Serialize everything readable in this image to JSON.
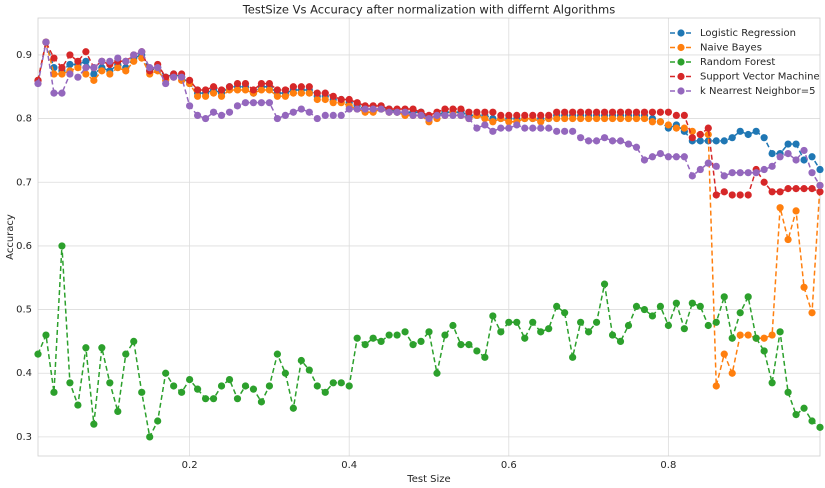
{
  "chart_data": {
    "type": "line",
    "title": "TestSize Vs Accuracy after normalization with differnt Algorithms",
    "x_label": "Test Size",
    "y_label": "Accuracy",
    "x": [
      0.01,
      0.02,
      0.03,
      0.04,
      0.05,
      0.06,
      0.07,
      0.08,
      0.09,
      0.1,
      0.11,
      0.12,
      0.13,
      0.14,
      0.15,
      0.16,
      0.17,
      0.18,
      0.19,
      0.2,
      0.21,
      0.22,
      0.23,
      0.24,
      0.25,
      0.26,
      0.27,
      0.28,
      0.29,
      0.3,
      0.31,
      0.32,
      0.33,
      0.34,
      0.35,
      0.36,
      0.37,
      0.38,
      0.39,
      0.4,
      0.41,
      0.42,
      0.43,
      0.44,
      0.45,
      0.46,
      0.47,
      0.48,
      0.49,
      0.5,
      0.51,
      0.52,
      0.53,
      0.54,
      0.55,
      0.56,
      0.57,
      0.58,
      0.59,
      0.6,
      0.61,
      0.62,
      0.63,
      0.64,
      0.65,
      0.66,
      0.67,
      0.68,
      0.69,
      0.7,
      0.71,
      0.72,
      0.73,
      0.74,
      0.75,
      0.76,
      0.77,
      0.78,
      0.79,
      0.8,
      0.81,
      0.82,
      0.83,
      0.84,
      0.85,
      0.86,
      0.87,
      0.88,
      0.89,
      0.9,
      0.91,
      0.92,
      0.93,
      0.94,
      0.95,
      0.96,
      0.97,
      0.98,
      0.99
    ],
    "series": [
      {
        "name": "Logistic Regression",
        "color": "#1f77b4",
        "values": [
          0.86,
          0.92,
          0.88,
          0.875,
          0.885,
          0.885,
          0.89,
          0.87,
          0.88,
          0.875,
          0.885,
          0.88,
          0.895,
          0.9,
          0.875,
          0.88,
          0.865,
          0.87,
          0.865,
          0.855,
          0.84,
          0.84,
          0.845,
          0.84,
          0.85,
          0.85,
          0.85,
          0.84,
          0.85,
          0.85,
          0.84,
          0.84,
          0.845,
          0.845,
          0.845,
          0.835,
          0.835,
          0.83,
          0.83,
          0.825,
          0.82,
          0.815,
          0.815,
          0.815,
          0.815,
          0.81,
          0.81,
          0.81,
          0.81,
          0.8,
          0.805,
          0.81,
          0.81,
          0.81,
          0.805,
          0.805,
          0.805,
          0.8,
          0.8,
          0.8,
          0.8,
          0.8,
          0.8,
          0.8,
          0.8,
          0.805,
          0.805,
          0.805,
          0.805,
          0.805,
          0.805,
          0.805,
          0.805,
          0.805,
          0.805,
          0.805,
          0.805,
          0.8,
          0.795,
          0.785,
          0.79,
          0.78,
          0.765,
          0.765,
          0.765,
          0.765,
          0.765,
          0.77,
          0.78,
          0.775,
          0.78,
          0.77,
          0.745,
          0.745,
          0.76,
          0.76,
          0.735,
          0.74,
          0.72
        ]
      },
      {
        "name": "Naive Bayes",
        "color": "#ff7f0e",
        "values": [
          0.86,
          0.92,
          0.87,
          0.87,
          0.875,
          0.88,
          0.87,
          0.86,
          0.875,
          0.87,
          0.88,
          0.875,
          0.89,
          0.895,
          0.87,
          0.875,
          0.86,
          0.865,
          0.86,
          0.855,
          0.835,
          0.835,
          0.84,
          0.835,
          0.845,
          0.845,
          0.845,
          0.84,
          0.845,
          0.845,
          0.835,
          0.835,
          0.84,
          0.84,
          0.84,
          0.83,
          0.83,
          0.825,
          0.825,
          0.82,
          0.815,
          0.81,
          0.81,
          0.815,
          0.81,
          0.81,
          0.805,
          0.805,
          0.805,
          0.795,
          0.8,
          0.805,
          0.81,
          0.805,
          0.8,
          0.805,
          0.8,
          0.795,
          0.8,
          0.795,
          0.795,
          0.8,
          0.8,
          0.795,
          0.8,
          0.8,
          0.8,
          0.8,
          0.8,
          0.8,
          0.8,
          0.8,
          0.8,
          0.8,
          0.8,
          0.8,
          0.8,
          0.795,
          0.795,
          0.79,
          0.785,
          0.785,
          0.78,
          0.775,
          0.775,
          0.38,
          0.43,
          0.4,
          0.46,
          0.46,
          0.455,
          0.455,
          0.46,
          0.66,
          0.61,
          0.655,
          0.535,
          0.495,
          0.695
        ]
      },
      {
        "name": "Random Forest",
        "color": "#2ca02c",
        "values": [
          0.43,
          0.46,
          0.37,
          0.6,
          0.385,
          0.35,
          0.44,
          0.32,
          0.44,
          0.385,
          0.34,
          0.43,
          0.45,
          0.37,
          0.3,
          0.325,
          0.4,
          0.38,
          0.37,
          0.39,
          0.375,
          0.36,
          0.36,
          0.38,
          0.39,
          0.36,
          0.38,
          0.375,
          0.355,
          0.38,
          0.43,
          0.4,
          0.345,
          0.42,
          0.405,
          0.38,
          0.37,
          0.385,
          0.385,
          0.38,
          0.455,
          0.445,
          0.455,
          0.45,
          0.46,
          0.46,
          0.465,
          0.445,
          0.45,
          0.465,
          0.4,
          0.46,
          0.475,
          0.445,
          0.445,
          0.435,
          0.425,
          0.49,
          0.465,
          0.48,
          0.48,
          0.455,
          0.48,
          0.465,
          0.47,
          0.505,
          0.495,
          0.425,
          0.48,
          0.465,
          0.48,
          0.54,
          0.46,
          0.45,
          0.475,
          0.505,
          0.5,
          0.49,
          0.505,
          0.475,
          0.51,
          0.47,
          0.51,
          0.505,
          0.475,
          0.48,
          0.52,
          0.455,
          0.495,
          0.52,
          0.455,
          0.435,
          0.385,
          0.465,
          0.37,
          0.335,
          0.345,
          0.325,
          0.315
        ]
      },
      {
        "name": "Support Vector Machine",
        "color": "#d62728",
        "values": [
          0.86,
          0.92,
          0.895,
          0.88,
          0.9,
          0.89,
          0.905,
          0.88,
          0.89,
          0.885,
          0.89,
          0.89,
          0.9,
          0.905,
          0.875,
          0.885,
          0.865,
          0.87,
          0.87,
          0.86,
          0.845,
          0.845,
          0.85,
          0.845,
          0.85,
          0.855,
          0.855,
          0.845,
          0.855,
          0.855,
          0.845,
          0.845,
          0.85,
          0.85,
          0.85,
          0.84,
          0.84,
          0.835,
          0.83,
          0.83,
          0.825,
          0.82,
          0.82,
          0.82,
          0.815,
          0.815,
          0.815,
          0.815,
          0.81,
          0.805,
          0.81,
          0.815,
          0.815,
          0.815,
          0.81,
          0.81,
          0.81,
          0.81,
          0.805,
          0.805,
          0.805,
          0.805,
          0.805,
          0.805,
          0.805,
          0.81,
          0.81,
          0.81,
          0.81,
          0.81,
          0.81,
          0.81,
          0.81,
          0.81,
          0.81,
          0.81,
          0.81,
          0.81,
          0.81,
          0.81,
          0.805,
          0.805,
          0.77,
          0.775,
          0.785,
          0.68,
          0.685,
          0.68,
          0.68,
          0.68,
          0.72,
          0.7,
          0.685,
          0.685,
          0.69,
          0.69,
          0.69,
          0.69,
          0.685
        ]
      },
      {
        "name": "k Nearrest Neighbor=5",
        "color": "#9467bd",
        "values": [
          0.855,
          0.92,
          0.84,
          0.84,
          0.87,
          0.865,
          0.88,
          0.88,
          0.89,
          0.89,
          0.895,
          0.89,
          0.9,
          0.905,
          0.88,
          0.88,
          0.855,
          0.865,
          0.865,
          0.82,
          0.805,
          0.8,
          0.81,
          0.805,
          0.81,
          0.82,
          0.825,
          0.825,
          0.825,
          0.825,
          0.8,
          0.805,
          0.81,
          0.815,
          0.81,
          0.8,
          0.805,
          0.805,
          0.805,
          0.815,
          0.815,
          0.815,
          0.815,
          0.815,
          0.81,
          0.81,
          0.81,
          0.805,
          0.805,
          0.8,
          0.805,
          0.805,
          0.805,
          0.805,
          0.8,
          0.785,
          0.79,
          0.78,
          0.785,
          0.785,
          0.79,
          0.785,
          0.785,
          0.785,
          0.785,
          0.78,
          0.78,
          0.78,
          0.77,
          0.765,
          0.765,
          0.77,
          0.765,
          0.765,
          0.76,
          0.755,
          0.735,
          0.74,
          0.745,
          0.74,
          0.74,
          0.74,
          0.71,
          0.72,
          0.73,
          0.725,
          0.71,
          0.715,
          0.715,
          0.715,
          0.715,
          0.72,
          0.725,
          0.74,
          0.745,
          0.735,
          0.75,
          0.715,
          0.695
        ]
      }
    ],
    "xlim": [
      0.01,
      0.99
    ],
    "ylim": [
      0.27,
      0.958
    ],
    "xticks": [
      0.2,
      0.4,
      0.6,
      0.8
    ],
    "yticks": [
      0.3,
      0.4,
      0.5,
      0.6,
      0.7,
      0.8,
      0.9
    ],
    "grid": true,
    "legend": "upper right",
    "line_style": "dashed",
    "marker": "circle"
  }
}
